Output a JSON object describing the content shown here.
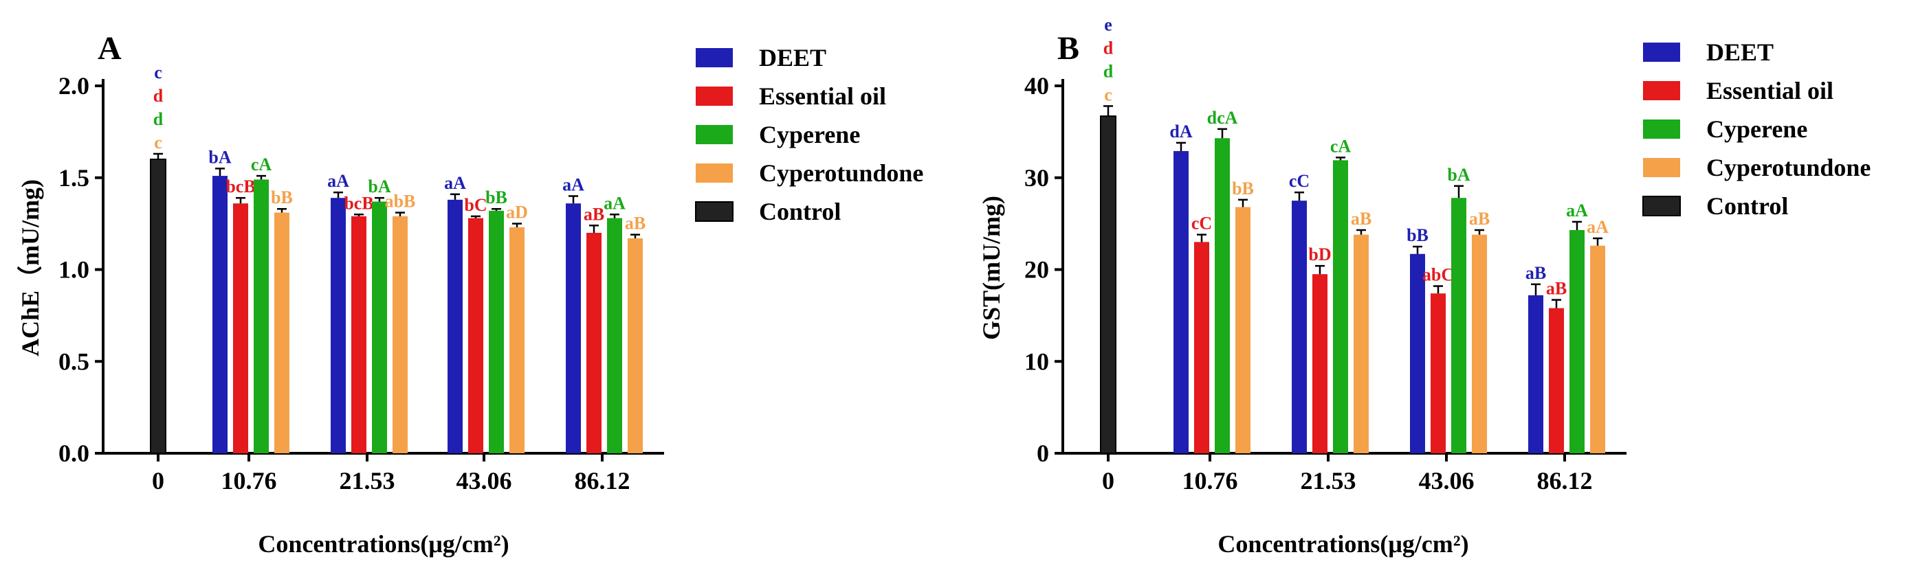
{
  "chart_data": [
    {
      "panel": "A",
      "type": "bar",
      "ylabel": "AChE（mU/mg)",
      "xlabel": "Concentrations(μg/cm²)",
      "ylim": [
        0,
        2.0
      ],
      "yticks": [
        "0.0",
        "0.5",
        "1.0",
        "1.5",
        "2.0"
      ],
      "ytick_values": [
        0,
        0.5,
        1.0,
        1.5,
        2.0
      ],
      "control": {
        "category": "0",
        "value": 1.6,
        "error": 0.03,
        "letters": [
          {
            "text": "c",
            "color": "#1f1fb4"
          },
          {
            "text": "d",
            "color": "#e41a1c"
          },
          {
            "text": "d",
            "color": "#1aaa1a"
          },
          {
            "text": "c",
            "color": "#f4a14a"
          }
        ]
      },
      "categories": [
        "10.76",
        "21.53",
        "43.06",
        "86.12"
      ],
      "series": [
        {
          "name": "DEET",
          "color": "#1f1fb4",
          "values": [
            1.51,
            1.39,
            1.38,
            1.36
          ],
          "errors": [
            0.04,
            0.03,
            0.03,
            0.04
          ],
          "labels": [
            "bA",
            "aA",
            "aA",
            "aA"
          ]
        },
        {
          "name": "Essential oil",
          "color": "#e41a1c",
          "values": [
            1.36,
            1.29,
            1.28,
            1.2
          ],
          "errors": [
            0.03,
            0.01,
            0.01,
            0.04
          ],
          "labels": [
            "bcB",
            "bcB",
            "bC",
            "aB"
          ]
        },
        {
          "name": "Cyperene",
          "color": "#1aaa1a",
          "values": [
            1.49,
            1.37,
            1.32,
            1.28
          ],
          "errors": [
            0.02,
            0.02,
            0.01,
            0.02
          ],
          "labels": [
            "cA",
            "bA",
            "bB",
            "aA"
          ]
        },
        {
          "name": "Cyperotundone",
          "color": "#f4a14a",
          "values": [
            1.31,
            1.29,
            1.23,
            1.17
          ],
          "errors": [
            0.02,
            0.02,
            0.02,
            0.02
          ],
          "labels": [
            "bB",
            "abB",
            "aD",
            "aB"
          ]
        }
      ]
    },
    {
      "panel": "B",
      "type": "bar",
      "ylabel": "GST(mU/mg)",
      "xlabel": "Concentrations(μg/cm²)",
      "ylim": [
        0,
        40
      ],
      "yticks": [
        "0",
        "10",
        "20",
        "30",
        "40"
      ],
      "ytick_values": [
        0,
        10,
        20,
        30,
        40
      ],
      "control": {
        "category": "0",
        "value": 36.7,
        "error": 1.1,
        "letters": [
          {
            "text": "e",
            "color": "#1f1fb4"
          },
          {
            "text": "d",
            "color": "#e41a1c"
          },
          {
            "text": "d",
            "color": "#1aaa1a"
          },
          {
            "text": "c",
            "color": "#f4a14a"
          }
        ]
      },
      "categories": [
        "10.76",
        "21.53",
        "43.06",
        "86.12"
      ],
      "series": [
        {
          "name": "DEET",
          "color": "#1f1fb4",
          "values": [
            32.9,
            27.5,
            21.7,
            17.2
          ],
          "errors": [
            0.9,
            0.9,
            0.8,
            1.2
          ],
          "labels": [
            "dA",
            "cC",
            "bB",
            "aB"
          ]
        },
        {
          "name": "Essential oil",
          "color": "#e41a1c",
          "values": [
            23.0,
            19.5,
            17.4,
            15.8
          ],
          "errors": [
            0.8,
            0.9,
            0.8,
            0.9
          ],
          "labels": [
            "cC",
            "bD",
            "abC",
            "aB"
          ]
        },
        {
          "name": "Cyperene",
          "color": "#1aaa1a",
          "values": [
            34.3,
            31.9,
            27.8,
            24.3
          ],
          "errors": [
            1.0,
            0.3,
            1.3,
            0.9
          ],
          "labels": [
            "dcA",
            "cA",
            "bA",
            "aA"
          ]
        },
        {
          "name": "Cyperotundone",
          "color": "#f4a14a",
          "values": [
            26.8,
            23.8,
            23.8,
            22.6
          ],
          "errors": [
            0.8,
            0.5,
            0.5,
            0.8
          ],
          "labels": [
            "bB",
            "aB",
            "aB",
            "aA"
          ]
        }
      ]
    }
  ],
  "legend": [
    {
      "name": "DEET",
      "color": "#1f1fb4"
    },
    {
      "name": "Essential oil",
      "color": "#e41a1c"
    },
    {
      "name": "Cyperene",
      "color": "#1aaa1a"
    },
    {
      "name": "Cyperotundone",
      "color": "#f4a14a"
    },
    {
      "name": "Control",
      "color": "#222222"
    }
  ]
}
